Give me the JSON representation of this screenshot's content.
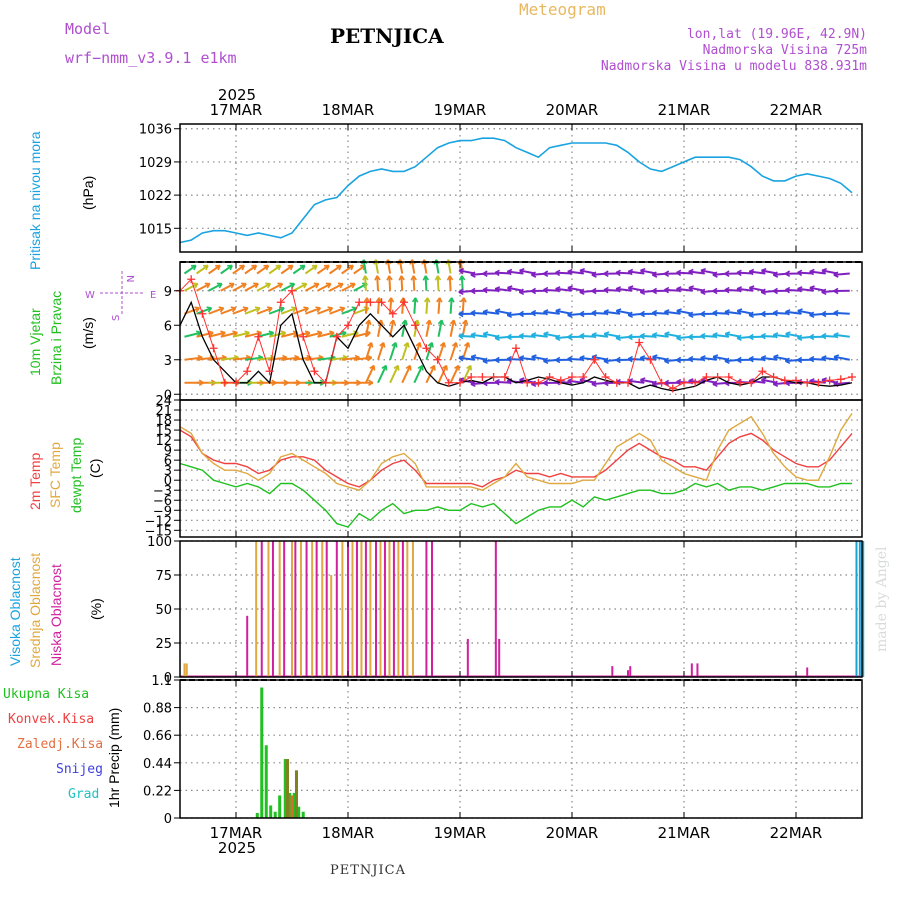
{
  "header": {
    "model_label": "Model",
    "model_name": "wrf−nmm_v3.9.1 e1km",
    "title": "PETNJICA",
    "meteogram": "Meteogram",
    "lonlat": "lon,lat (19.96E, 42.9N)",
    "altitude": "Nadmorska Visina 725m",
    "model_altitude": "Nadmorska Visina u modelu 838.931m"
  },
  "footer": {
    "station": "PETNJICA",
    "credit": "made by Angel"
  },
  "colors": {
    "pressure": "#1aa3e0",
    "wind_black": "#000000",
    "wind_red": "#ff3030",
    "temp2m": "#f04040",
    "sfc": "#e0a840",
    "dewpt": "#20c020",
    "precip_total": "#20c020",
    "precip_orange": "#d07030",
    "precip_olive": "#808020"
  },
  "chart_data": [
    {
      "type": "line",
      "name": "pressure",
      "xlabels": [
        "17MAR",
        "18MAR",
        "19MAR",
        "20MAR",
        "21MAR",
        "22MAR"
      ],
      "year": "2025",
      "ylabel_left": "Pritisak na nivou mora",
      "unit": "(hPa)",
      "yticks": [
        "1036",
        "1029",
        "1022",
        "1015"
      ],
      "ylim": [
        1010,
        1037
      ],
      "x": [
        0.0,
        0.1,
        0.2,
        0.3,
        0.4,
        0.5,
        0.6,
        0.7,
        0.8,
        0.9,
        1.0,
        1.1,
        1.2,
        1.3,
        1.4,
        1.5,
        1.6,
        1.7,
        1.8,
        1.9,
        2.0,
        2.1,
        2.2,
        2.3,
        2.4,
        2.5,
        2.6,
        2.7,
        2.8,
        2.9,
        3.0,
        3.1,
        3.2,
        3.3,
        3.4,
        3.5,
        3.6,
        3.7,
        3.8,
        3.9,
        4.0,
        4.1,
        4.2,
        4.3,
        4.4,
        4.5,
        4.6,
        4.7,
        4.8,
        4.9,
        5.0,
        5.1,
        5.2,
        5.3,
        5.4,
        5.5,
        5.6,
        5.7,
        5.8,
        5.9,
        6.0
      ],
      "values": [
        1012,
        1012.5,
        1014,
        1014.5,
        1014.5,
        1014,
        1013.5,
        1014,
        1013.5,
        1013,
        1014,
        1017,
        1020,
        1021,
        1021.5,
        1024,
        1026,
        1027,
        1027.5,
        1027,
        1027,
        1028,
        1030,
        1032,
        1033,
        1033.5,
        1033.5,
        1034,
        1034,
        1033.5,
        1032,
        1031,
        1030,
        1032,
        1032.5,
        1033,
        1033,
        1033,
        1033,
        1032.5,
        1031,
        1029,
        1027.5,
        1027,
        1028,
        1029,
        1030,
        1030,
        1030,
        1030,
        1029.5,
        1028,
        1026,
        1025,
        1025,
        1026,
        1026.5,
        1026,
        1025.5,
        1024.5,
        1022.5
      ]
    },
    {
      "type": "line",
      "name": "wind",
      "ylabel_left": "10m Vjetar",
      "ylabel_left2": "Brzina i Pravac",
      "unit": "(m/s)",
      "yticks": [
        "0",
        "3",
        "6",
        "9"
      ],
      "ylim": [
        -0.5,
        11.5
      ],
      "compass": {
        "n": "N",
        "s": "S",
        "w": "W",
        "e": "E"
      },
      "series": [
        {
          "name": "speed",
          "x": [
            0.0,
            0.1,
            0.2,
            0.3,
            0.4,
            0.5,
            0.6,
            0.7,
            0.8,
            0.9,
            1.0,
            1.1,
            1.2,
            1.3,
            1.4,
            1.5,
            1.6,
            1.7,
            1.8,
            1.9,
            2.0,
            2.1,
            2.2,
            2.3,
            2.4,
            2.5,
            2.6,
            2.7,
            2.8,
            2.9,
            3.0,
            3.1,
            3.2,
            3.3,
            3.4,
            3.5,
            3.6,
            3.7,
            3.8,
            3.9,
            4.0,
            4.1,
            4.2,
            4.3,
            4.4,
            4.5,
            4.6,
            4.7,
            4.8,
            4.9,
            5.0,
            5.1,
            5.2,
            5.3,
            5.4,
            5.5,
            5.6,
            5.7,
            5.8,
            5.9,
            6.0
          ],
          "values": [
            6,
            8,
            5,
            3,
            2,
            1,
            1,
            2,
            1,
            6,
            7,
            3,
            1,
            1,
            5,
            4,
            6,
            7,
            6,
            5,
            6,
            4,
            2,
            1,
            0.7,
            1,
            1.2,
            1,
            1.5,
            1.5,
            1,
            1.2,
            1.5,
            1.3,
            1,
            0.8,
            1,
            1.5,
            1.2,
            1,
            1,
            0.5,
            0.8,
            0.5,
            0.3,
            0.5,
            0.7,
            1.2,
            1.5,
            1,
            0.8,
            1,
            1.5,
            1.5,
            1.2,
            1,
            1,
            0.8,
            0.7,
            0.8,
            1
          ]
        },
        {
          "name": "gust",
          "x": [
            0.0,
            0.1,
            0.2,
            0.3,
            0.4,
            0.5,
            0.6,
            0.7,
            0.8,
            0.9,
            1.0,
            1.1,
            1.2,
            1.3,
            1.4,
            1.5,
            1.6,
            1.7,
            1.8,
            1.9,
            2.0,
            2.1,
            2.2,
            2.3,
            2.4,
            2.5,
            2.6,
            2.7,
            2.8,
            2.9,
            3.0,
            3.1,
            3.2,
            3.3,
            3.4,
            3.5,
            3.6,
            3.7,
            3.8,
            3.9,
            4.0,
            4.1,
            4.2,
            4.3,
            4.4,
            4.5,
            4.6,
            4.7,
            4.8,
            4.9,
            5.0,
            5.1,
            5.2,
            5.3,
            5.4,
            5.5,
            5.6,
            5.7,
            5.8,
            5.9,
            6.0
          ],
          "values": [
            9,
            10,
            7,
            4,
            1,
            1,
            2,
            5,
            2,
            8,
            9,
            5,
            2,
            1,
            5,
            6,
            8,
            8,
            8,
            7,
            8,
            6,
            4,
            3,
            1,
            1,
            1.5,
            1.5,
            1.5,
            1.5,
            4,
            1,
            1,
            1.5,
            1.2,
            1.5,
            1.5,
            3,
            1.5,
            1,
            1,
            4.5,
            3,
            1,
            0.5,
            1,
            1,
            1.5,
            1.5,
            1.5,
            1,
            1,
            2,
            1.5,
            1.2,
            1.2,
            1,
            1,
            1.2,
            1.3,
            1.5
          ]
        }
      ]
    },
    {
      "type": "line",
      "name": "temperature",
      "ylabel_left": "2m Temp",
      "ylabel_left2": "SFC Temp",
      "ylabel_left3": "dewpt Temp",
      "unit": "(C)",
      "yticks": [
        "24",
        "21",
        "18",
        "15",
        "12",
        "9",
        "6",
        "3",
        "0",
        "−3",
        "−6",
        "−9",
        "−12",
        "−15"
      ],
      "ylim": [
        -17,
        24
      ],
      "series": [
        {
          "name": "temp2m",
          "x": [
            0.0,
            0.1,
            0.2,
            0.3,
            0.4,
            0.5,
            0.6,
            0.7,
            0.8,
            0.9,
            1.0,
            1.1,
            1.2,
            1.3,
            1.4,
            1.5,
            1.6,
            1.7,
            1.8,
            1.9,
            2.0,
            2.1,
            2.2,
            2.3,
            2.4,
            2.5,
            2.6,
            2.7,
            2.8,
            2.9,
            3.0,
            3.1,
            3.2,
            3.3,
            3.4,
            3.5,
            3.6,
            3.7,
            3.8,
            3.9,
            4.0,
            4.1,
            4.2,
            4.3,
            4.4,
            4.5,
            4.6,
            4.7,
            4.8,
            4.9,
            5.0,
            5.1,
            5.2,
            5.3,
            5.4,
            5.5,
            5.6,
            5.7,
            5.8,
            5.9,
            6.0
          ],
          "values": [
            15,
            13,
            8,
            6,
            5,
            5,
            4,
            2,
            3,
            6,
            7,
            7,
            6,
            3,
            1,
            -1,
            -2,
            0,
            3,
            5,
            6,
            3,
            -1,
            -1,
            -1,
            -1,
            -1,
            -2,
            0,
            1,
            3,
            2,
            2,
            1,
            2,
            1,
            1,
            1,
            3,
            6,
            9,
            11,
            9,
            7,
            6,
            4,
            4,
            3,
            7,
            11,
            13,
            14,
            12,
            9,
            7,
            5,
            4,
            4,
            6,
            10,
            14
          ]
        },
        {
          "name": "sfc",
          "x": [
            0.0,
            0.1,
            0.2,
            0.3,
            0.4,
            0.5,
            0.6,
            0.7,
            0.8,
            0.9,
            1.0,
            1.1,
            1.2,
            1.3,
            1.4,
            1.5,
            1.6,
            1.7,
            1.8,
            1.9,
            2.0,
            2.1,
            2.2,
            2.3,
            2.4,
            2.5,
            2.6,
            2.7,
            2.8,
            2.9,
            3.0,
            3.1,
            3.2,
            3.3,
            3.4,
            3.5,
            3.6,
            3.7,
            3.8,
            3.9,
            4.0,
            4.1,
            4.2,
            4.3,
            4.4,
            4.5,
            4.6,
            4.7,
            4.8,
            4.9,
            5.0,
            5.1,
            5.2,
            5.3,
            5.4,
            5.5,
            5.6,
            5.7,
            5.8,
            5.9,
            6.0
          ],
          "values": [
            16,
            14,
            8,
            5,
            3,
            3,
            2,
            0,
            2,
            7,
            8,
            6,
            4,
            2,
            -1,
            -2,
            -3,
            0,
            5,
            7,
            8,
            5,
            -2,
            -2,
            -2,
            -2,
            -2,
            -3,
            -1,
            1,
            5,
            1,
            0,
            -1,
            -1,
            -1,
            0,
            0,
            5,
            10,
            12,
            14,
            12,
            6,
            4,
            2,
            1,
            0,
            9,
            15,
            17,
            19,
            14,
            8,
            4,
            1,
            0,
            0,
            7,
            15,
            20
          ]
        },
        {
          "name": "dewpt",
          "x": [
            0.0,
            0.1,
            0.2,
            0.3,
            0.4,
            0.5,
            0.6,
            0.7,
            0.8,
            0.9,
            1.0,
            1.1,
            1.2,
            1.3,
            1.4,
            1.5,
            1.6,
            1.7,
            1.8,
            1.9,
            2.0,
            2.1,
            2.2,
            2.3,
            2.4,
            2.5,
            2.6,
            2.7,
            2.8,
            2.9,
            3.0,
            3.1,
            3.2,
            3.3,
            3.4,
            3.5,
            3.6,
            3.7,
            3.8,
            3.9,
            4.0,
            4.1,
            4.2,
            4.3,
            4.4,
            4.5,
            4.6,
            4.7,
            4.8,
            4.9,
            5.0,
            5.1,
            5.2,
            5.3,
            5.4,
            5.5,
            5.6,
            5.7,
            5.8,
            5.9,
            6.0
          ],
          "values": [
            5,
            4,
            3,
            0,
            -1,
            -2,
            -1,
            -2,
            -4,
            -1,
            -1,
            -3,
            -6,
            -9,
            -13,
            -14,
            -10,
            -12,
            -9,
            -7,
            -10,
            -9,
            -9,
            -8,
            -9,
            -9,
            -7,
            -8,
            -7,
            -10,
            -13,
            -11,
            -9,
            -8,
            -8,
            -6,
            -8,
            -5,
            -6,
            -5,
            -4,
            -3,
            -3,
            -4,
            -4,
            -3,
            -1,
            -2,
            -1,
            -3,
            -2,
            -2,
            -3,
            -2,
            -1,
            -1,
            -1,
            -2,
            -2,
            -1,
            -1
          ]
        }
      ]
    },
    {
      "type": "bar",
      "name": "cloud",
      "ylabel_left": "Visoka Oblacnost",
      "ylabel_left2": "Srednja Oblacnost",
      "ylabel_left3": "Niska Oblacnost",
      "unit": "(%)",
      "yticks": [
        "100",
        "75",
        "50",
        "25",
        "0"
      ],
      "ylim": [
        0,
        100
      ],
      "series": [
        {
          "name": "mid",
          "color": "#e0a840",
          "x": [
            0.04,
            0.06,
            0.68,
            0.79,
            0.89,
            1.0,
            1.08,
            1.18,
            1.27,
            1.35,
            1.45,
            1.54,
            1.62,
            1.7,
            1.79,
            1.87,
            1.95,
            2.03,
            2.08
          ],
          "values": [
            10,
            10,
            100,
            100,
            100,
            100,
            100,
            100,
            100,
            75,
            100,
            100,
            100,
            100,
            100,
            100,
            100,
            100,
            100
          ]
        },
        {
          "name": "low",
          "color": "#d020a0",
          "x": [
            0.6,
            0.73,
            0.83,
            0.93,
            1.03,
            1.13,
            1.22,
            1.31,
            1.4,
            1.5,
            1.58,
            1.66,
            1.75,
            1.83,
            1.91,
            1.99,
            2.2,
            2.25,
            2.57,
            2.82,
            2.85,
            3.86,
            4.0,
            4.02,
            4.57,
            4.62,
            5.6
          ],
          "values": [
            45,
            100,
            100,
            100,
            100,
            100,
            100,
            100,
            100,
            100,
            100,
            100,
            100,
            100,
            100,
            100,
            100,
            100,
            28,
            100,
            28,
            8,
            5,
            8,
            10,
            10,
            7
          ]
        },
        {
          "name": "high",
          "color": "#20a0d0",
          "x": [
            6.04,
            6.07,
            6.1
          ],
          "values": [
            100,
            100,
            100
          ]
        }
      ]
    },
    {
      "type": "bar",
      "name": "precip",
      "ylabel_left": "1hr Precip (mm)",
      "yticks": [
        "1.1",
        "0.88",
        "0.66",
        "0.44",
        "0.22",
        "0"
      ],
      "ylim": [
        0,
        1.1
      ],
      "legend": [
        {
          "label": "Ukupna Kisa",
          "color": "#20c020"
        },
        {
          "label": "Konvek.Kisa",
          "color": "#f04040"
        },
        {
          "label": "Zaledj.Kisa",
          "color": "#e07040"
        },
        {
          "label": "Snijeg",
          "color": "#4040e0"
        },
        {
          "label": "Grad",
          "color": "#20c0c0"
        }
      ],
      "series": [
        {
          "name": "total",
          "color": "#20c020",
          "x": [
            0.69,
            0.73,
            0.77,
            0.81,
            0.85,
            0.89,
            0.94,
            0.98,
            1.02,
            1.06,
            1.1
          ],
          "values": [
            0.04,
            1.04,
            0.58,
            0.1,
            0.05,
            0.18,
            0.47,
            0.2,
            0.2,
            0.09,
            0.05
          ]
        },
        {
          "name": "olive",
          "color": "#808020",
          "x": [
            0.96,
            1.04
          ],
          "values": [
            0.47,
            0.38
          ]
        },
        {
          "name": "orange",
          "color": "#d07030",
          "x": [
            1.0
          ],
          "values": [
            0.18
          ]
        }
      ]
    }
  ]
}
